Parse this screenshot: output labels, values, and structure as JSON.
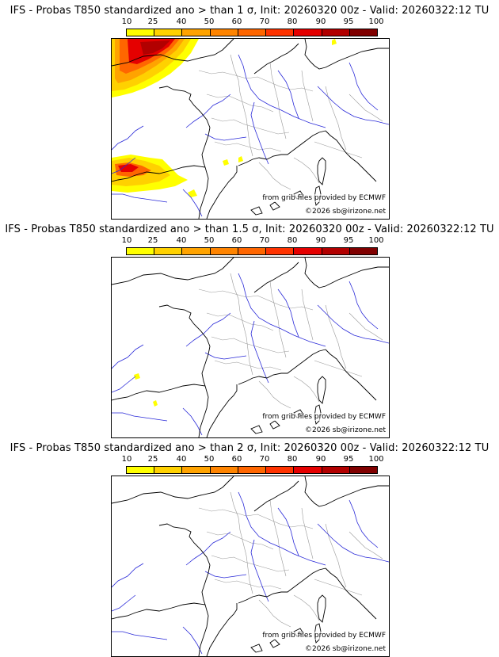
{
  "colorbar": {
    "ticks": [
      "10",
      "25",
      "40",
      "50",
      "60",
      "70",
      "80",
      "90",
      "95",
      "100"
    ],
    "colors": [
      "#ffff00",
      "#ffd100",
      "#ffa300",
      "#ff8400",
      "#ff6600",
      "#ff3300",
      "#e50000",
      "#b20000",
      "#800000"
    ]
  },
  "panels": [
    {
      "title": "IFS - Probas T850  standardized ano > than 1 σ, Init: 20260320 00z - Valid: 20260322:12 TU",
      "credit_source": "from grib files provided by ECMWF",
      "credit_copyright": "©2026 sb@irizone.net"
    },
    {
      "title": "IFS - Probas T850  standardized ano > than 1.5 σ, Init: 20260320 00z - Valid: 20260322:12 TU",
      "credit_source": "from grib files provided by ECMWF",
      "credit_copyright": "©2026 sb@irizone.net"
    },
    {
      "title": "IFS - Probas T850  standardized ano > than 2 σ, Init: 20260320 00z - Valid: 20260322:12 TU",
      "credit_source": "from grib files provided by ECMWF",
      "credit_copyright": "©2026 sb@irizone.net"
    }
  ],
  "map_colors": {
    "coast": "#000000",
    "rivers": "#2a2ad8",
    "borders": "#9a9a9a"
  }
}
